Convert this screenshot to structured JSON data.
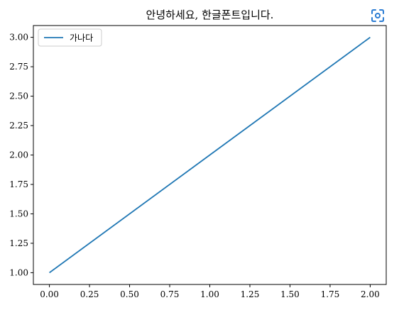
{
  "ui": {
    "screenshot_button_icon": "screenshot-icon",
    "icon_color": "#2b7cd3"
  },
  "chart_data": {
    "type": "line",
    "title": "안녕하세요, 한글폰트입니다.",
    "xlabel": "",
    "ylabel": "",
    "x": [
      0,
      1,
      2
    ],
    "series": [
      {
        "name": "가나다",
        "values": [
          1,
          2,
          3
        ],
        "color": "#1f77b4"
      }
    ],
    "xlim": [
      -0.1,
      2.1
    ],
    "ylim": [
      0.9,
      3.1
    ],
    "xticks": [
      0,
      0.25,
      0.5,
      0.75,
      1,
      1.25,
      1.5,
      1.75,
      2
    ],
    "xtick_labels": [
      "0.00",
      "0.25",
      "0.50",
      "0.75",
      "1.00",
      "1.25",
      "1.50",
      "1.75",
      "2.00"
    ],
    "yticks": [
      1,
      1.25,
      1.5,
      1.75,
      2,
      2.25,
      2.5,
      2.75,
      3
    ],
    "ytick_labels": [
      "1.00",
      "1.25",
      "1.50",
      "1.75",
      "2.00",
      "2.25",
      "2.50",
      "2.75",
      "3.00"
    ],
    "grid": false,
    "legend_position": "upper left"
  }
}
